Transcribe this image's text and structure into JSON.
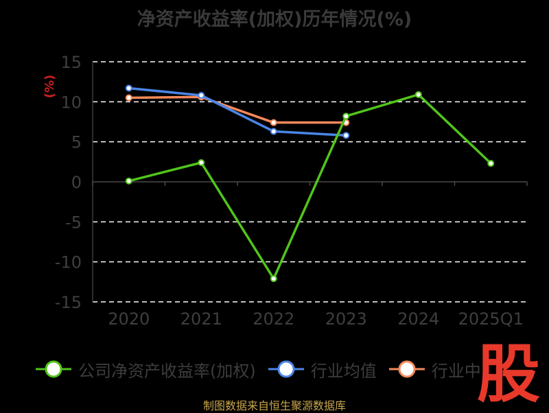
{
  "chart_data": {
    "type": "line",
    "title": "净资产收益率(加权)历年情况(%)",
    "ylabel": "(%)",
    "categories": [
      "2020",
      "2021",
      "2022",
      "2023",
      "2024",
      "2025Q1"
    ],
    "ylim": [
      -15,
      15
    ],
    "yticks": [
      15,
      10,
      5,
      0,
      -5,
      -10,
      -15
    ],
    "ytick_labels": [
      "15",
      "10",
      "5",
      "0",
      "-5",
      "-10",
      "-15"
    ],
    "grid": true,
    "legend_position": "bottom",
    "series": [
      {
        "name": "公司净资产收益率(加权)",
        "color": "#52c41a",
        "values": [
          0.1,
          2.4,
          -12.1,
          8.2,
          10.9,
          2.3
        ]
      },
      {
        "name": "行业均值",
        "color": "#4a86e8",
        "values": [
          11.7,
          10.8,
          6.3,
          5.8,
          null,
          null
        ]
      },
      {
        "name": "行业中位数",
        "color": "#f58a5b",
        "values": [
          10.5,
          10.6,
          7.4,
          7.4,
          null,
          null
        ]
      }
    ]
  },
  "legend": {
    "items": [
      "公司净资产收益率(加权)",
      "行业均值",
      "行业中"
    ]
  },
  "footer": {
    "source": "制图数据来自恒生聚源数据库"
  },
  "watermark": {
    "text": "股"
  }
}
